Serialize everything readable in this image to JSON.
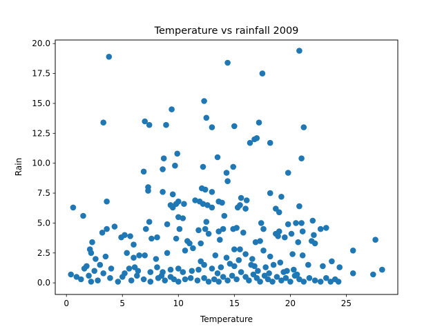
{
  "chart_data": {
    "type": "scatter",
    "title": "Temperature vs rainfall 2009",
    "xlabel": "Temperature",
    "ylabel": "Rain",
    "xlim": [
      -1.0,
      29.6
    ],
    "ylim": [
      -0.97,
      20.3
    ],
    "x_ticks": [
      0,
      5,
      10,
      15,
      20,
      25
    ],
    "x_tick_labels": [
      "0",
      "5",
      "10",
      "15",
      "20",
      "25"
    ],
    "y_ticks": [
      0.0,
      2.5,
      5.0,
      7.5,
      10.0,
      12.5,
      15.0,
      17.5,
      20.0
    ],
    "y_tick_labels": [
      "0.0",
      "2.5",
      "5.0",
      "7.5",
      "10.0",
      "12.5",
      "15.0",
      "17.5",
      "20.0"
    ],
    "grid": false,
    "marker_color": "#1f77b4",
    "points": [
      [
        3.8,
        18.9
      ],
      [
        14.4,
        18.4
      ],
      [
        17.5,
        17.5
      ],
      [
        20.8,
        19.4
      ],
      [
        12.3,
        15.2
      ],
      [
        9.4,
        14.5
      ],
      [
        12.5,
        13.8
      ],
      [
        3.3,
        13.4
      ],
      [
        7.0,
        13.5
      ],
      [
        7.4,
        13.2
      ],
      [
        8.9,
        13.2
      ],
      [
        13.0,
        13.0
      ],
      [
        15.0,
        13.1
      ],
      [
        17.2,
        13.4
      ],
      [
        21.2,
        13.0
      ],
      [
        16.4,
        11.7
      ],
      [
        16.8,
        12.0
      ],
      [
        17.0,
        12.1
      ],
      [
        18.2,
        11.7
      ],
      [
        13.5,
        10.5
      ],
      [
        21.0,
        10.4
      ],
      [
        8.7,
        10.4
      ],
      [
        9.9,
        10.8
      ],
      [
        9.7,
        9.8
      ],
      [
        8.6,
        9.5
      ],
      [
        6.9,
        9.3
      ],
      [
        12.2,
        9.7
      ],
      [
        14.3,
        9.2
      ],
      [
        14.9,
        9.7
      ],
      [
        14.4,
        8.5
      ],
      [
        19.8,
        9.2
      ],
      [
        7.3,
        8.0
      ],
      [
        7.3,
        7.7
      ],
      [
        8.6,
        7.6
      ],
      [
        9.5,
        7.4
      ],
      [
        12.1,
        7.9
      ],
      [
        12.4,
        7.8
      ],
      [
        13.0,
        7.6
      ],
      [
        15.6,
        7.1
      ],
      [
        16.1,
        6.9
      ],
      [
        18.2,
        7.5
      ],
      [
        19.2,
        7.2
      ],
      [
        3.6,
        6.8
      ],
      [
        0.6,
        6.3
      ],
      [
        9.3,
        6.5
      ],
      [
        9.5,
        6.3
      ],
      [
        9.8,
        6.6
      ],
      [
        10.0,
        6.8
      ],
      [
        10.5,
        6.6
      ],
      [
        11.5,
        6.9
      ],
      [
        11.9,
        6.8
      ],
      [
        12.2,
        6.6
      ],
      [
        12.6,
        6.5
      ],
      [
        13.0,
        6.3
      ],
      [
        13.6,
        6.8
      ],
      [
        13.9,
        6.7
      ],
      [
        15.3,
        6.3
      ],
      [
        15.5,
        6.5
      ],
      [
        16.0,
        6.2
      ],
      [
        18.7,
        6.2
      ],
      [
        19.0,
        5.9
      ],
      [
        20.8,
        6.4
      ],
      [
        1.5,
        5.6
      ],
      [
        7.4,
        5.1
      ],
      [
        9.0,
        4.9
      ],
      [
        10.0,
        5.5
      ],
      [
        10.4,
        5.4
      ],
      [
        12.5,
        5.1
      ],
      [
        14.1,
        5.6
      ],
      [
        17.4,
        5.0
      ],
      [
        19.8,
        4.9
      ],
      [
        20.5,
        5.0
      ],
      [
        21.0,
        5.0
      ],
      [
        22.0,
        5.2
      ],
      [
        3.2,
        4.2
      ],
      [
        3.6,
        4.5
      ],
      [
        4.3,
        4.7
      ],
      [
        7.1,
        4.5
      ],
      [
        10.1,
        4.5
      ],
      [
        11.8,
        4.4
      ],
      [
        12.4,
        4.5
      ],
      [
        12.7,
        4.1
      ],
      [
        13.6,
        4.3
      ],
      [
        14.0,
        4.5
      ],
      [
        14.9,
        4.5
      ],
      [
        15.2,
        4.6
      ],
      [
        15.8,
        4.2
      ],
      [
        17.6,
        4.5
      ],
      [
        18.7,
        4.1
      ],
      [
        19.0,
        4.3
      ],
      [
        19.5,
        3.8
      ],
      [
        20.1,
        4.1
      ],
      [
        21.1,
        4.3
      ],
      [
        22.1,
        4.0
      ],
      [
        22.7,
        4.5
      ],
      [
        23.2,
        4.6
      ],
      [
        4.9,
        3.8
      ],
      [
        5.2,
        4.0
      ],
      [
        5.7,
        3.9
      ],
      [
        7.6,
        3.7
      ],
      [
        8.1,
        3.8
      ],
      [
        9.8,
        3.7
      ],
      [
        10.8,
        3.5
      ],
      [
        11.0,
        3.3
      ],
      [
        12.0,
        3.3
      ],
      [
        13.7,
        3.6
      ],
      [
        16.9,
        3.4
      ],
      [
        17.3,
        3.5
      ],
      [
        18.9,
        3.9
      ],
      [
        20.7,
        3.4
      ],
      [
        21.9,
        3.5
      ],
      [
        22.2,
        3.3
      ],
      [
        2.3,
        3.4
      ],
      [
        6.0,
        3.2
      ],
      [
        2.1,
        2.8
      ],
      [
        3.5,
        2.2
      ],
      [
        6.5,
        2.3
      ],
      [
        7.0,
        2.3
      ],
      [
        9.0,
        2.5
      ],
      [
        10.6,
        2.7
      ],
      [
        11.3,
        2.9
      ],
      [
        13.3,
        2.3
      ],
      [
        15.0,
        2.8
      ],
      [
        15.5,
        2.8
      ],
      [
        16.0,
        2.4
      ],
      [
        17.6,
        2.7
      ],
      [
        18.2,
        2.2
      ],
      [
        20.2,
        2.4
      ],
      [
        21.1,
        2.3
      ],
      [
        2.2,
        2.5
      ],
      [
        2.6,
        2.0
      ],
      [
        5.4,
        2.5
      ],
      [
        6.0,
        2.1
      ],
      [
        8.0,
        2.0
      ],
      [
        12.0,
        1.8
      ],
      [
        14.3,
        2.1
      ],
      [
        16.6,
        2.0
      ],
      [
        19.1,
        1.7
      ],
      [
        1.6,
        1.2
      ],
      [
        1.8,
        1.4
      ],
      [
        2.5,
        1.0
      ],
      [
        3.0,
        1.5
      ],
      [
        4.0,
        1.2
      ],
      [
        5.2,
        0.8
      ],
      [
        5.6,
        1.2
      ],
      [
        6.1,
        1.3
      ],
      [
        6.4,
        1.0
      ],
      [
        7.5,
        0.9
      ],
      [
        8.1,
        1.3
      ],
      [
        8.6,
        0.9
      ],
      [
        9.3,
        1.1
      ],
      [
        10.0,
        1.2
      ],
      [
        11.2,
        1.0
      ],
      [
        12.3,
        1.5
      ],
      [
        13.0,
        1.2
      ],
      [
        13.8,
        1.3
      ],
      [
        14.6,
        1.6
      ],
      [
        15.4,
        1.9
      ],
      [
        16.8,
        1.4
      ],
      [
        17.8,
        1.3
      ],
      [
        18.5,
        1.5
      ],
      [
        19.7,
        1.0
      ],
      [
        20.3,
        1.1
      ],
      [
        21.6,
        1.5
      ],
      [
        22.9,
        1.4
      ],
      [
        23.7,
        1.8
      ],
      [
        24.4,
        1.3
      ],
      [
        25.6,
        2.7
      ],
      [
        27.6,
        3.6
      ],
      [
        28.2,
        1.1
      ],
      [
        0.4,
        0.7
      ],
      [
        0.9,
        0.5
      ],
      [
        1.3,
        0.3
      ],
      [
        2.0,
        0.6
      ],
      [
        2.2,
        0.1
      ],
      [
        2.8,
        0.2
      ],
      [
        3.3,
        0.8
      ],
      [
        3.9,
        0.4
      ],
      [
        4.6,
        0.1
      ],
      [
        5.0,
        0.5
      ],
      [
        5.8,
        0.2
      ],
      [
        6.3,
        0.6
      ],
      [
        6.9,
        0.3
      ],
      [
        7.5,
        0.1
      ],
      [
        8.2,
        0.4
      ],
      [
        8.8,
        0.2
      ],
      [
        9.3,
        0.5
      ],
      [
        10.0,
        0.1
      ],
      [
        10.6,
        0.3
      ],
      [
        11.1,
        0.4
      ],
      [
        11.7,
        0.2
      ],
      [
        12.3,
        0.4
      ],
      [
        12.7,
        0.1
      ],
      [
        13.2,
        0.3
      ],
      [
        13.6,
        0.1
      ],
      [
        14.0,
        0.5
      ],
      [
        14.4,
        0.2
      ],
      [
        14.8,
        0.6
      ],
      [
        15.2,
        0.3
      ],
      [
        15.6,
        0.9
      ],
      [
        16.0,
        0.5
      ],
      [
        16.3,
        0.2
      ],
      [
        16.7,
        0.7
      ],
      [
        17.0,
        0.4
      ],
      [
        17.3,
        0.1
      ],
      [
        17.7,
        0.6
      ],
      [
        18.0,
        0.3
      ],
      [
        18.4,
        0.1
      ],
      [
        18.8,
        0.5
      ],
      [
        19.2,
        0.2
      ],
      [
        19.6,
        0.4
      ],
      [
        20.0,
        0.1
      ],
      [
        20.4,
        0.6
      ],
      [
        20.8,
        0.3
      ],
      [
        21.2,
        0.1
      ],
      [
        21.7,
        0.4
      ],
      [
        22.2,
        0.2
      ],
      [
        22.7,
        0.1
      ],
      [
        23.2,
        0.4
      ],
      [
        23.6,
        0.1
      ],
      [
        24.0,
        0.3
      ],
      [
        24.3,
        0.1
      ],
      [
        25.6,
        0.8
      ],
      [
        27.4,
        0.7
      ],
      [
        16.5,
        1.5
      ],
      [
        17.1,
        1.0
      ],
      [
        18.1,
        0.8
      ],
      [
        19.4,
        0.9
      ],
      [
        20.6,
        0.7
      ],
      [
        15.0,
        1.4
      ],
      [
        13.5,
        0.8
      ],
      [
        11.8,
        1.1
      ],
      [
        10.4,
        0.9
      ],
      [
        9.6,
        0.3
      ],
      [
        8.5,
        0.6
      ]
    ]
  }
}
